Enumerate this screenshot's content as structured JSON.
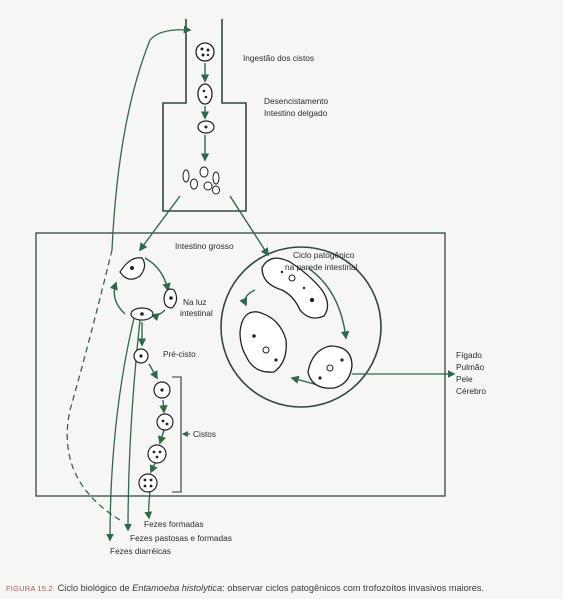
{
  "colors": {
    "arrow": "#2f6a48",
    "box": "#2e4a3e",
    "outline": "#333333",
    "page": "#f6f6f4",
    "caption_figure": "#b65a4a"
  },
  "labels": {
    "ingestao": "Ingestão dos cistos",
    "desencistamento": "Desencistamento",
    "intestino_delgado": "Intestino delgado",
    "intestino_grosso": "Intestino grosso",
    "ciclo_patogenico_1": "Ciclo patogênico",
    "ciclo_patogenico_2": "na parede intestinal",
    "na_luz": "Na luz",
    "intestinal": "intestinal",
    "pre_cisto": "Pré-cisto",
    "cistos": "Cistos",
    "figado": "Fígado",
    "pulmao": "Pulmão",
    "pele": "Pele",
    "cerebro": "Cérebro",
    "fezes_formadas": "Fezes formadas",
    "fezes_pastosas": "Fezes pastosas e formadas",
    "fezes_diarreicas": "Fezes diarréicas"
  },
  "caption": {
    "figure": "FIGURA 15.2.",
    "before": " Ciclo biológico de ",
    "species": "Entamoeba histolytica",
    "after": ": observar ciclos patogênicos com trofozoítos invasivos maiores."
  }
}
